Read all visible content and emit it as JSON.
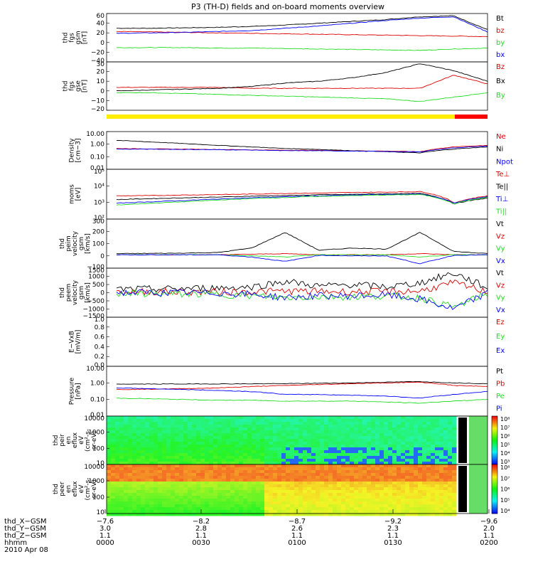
{
  "title": "P3 (TH-D) fields and on-board moments overview",
  "date_label": "2010 Apr 08",
  "colors": {
    "black": "#000000",
    "red": "#dd0000",
    "green": "#22dd22",
    "blue": "#0000ff",
    "bar_yellow": "#ffee00",
    "bar_red": "#ff0000"
  },
  "chart_data": [
    {
      "type": "line",
      "ylabel": [
        "thd",
        "fgs",
        "gsm",
        "[nT]"
      ],
      "yticks": [
        "60",
        "40",
        "20",
        "0",
        "−20",
        "−40"
      ],
      "ylim": [
        -40,
        65
      ],
      "series": [
        {
          "name": "Bt",
          "color": "black",
          "values": [
            33,
            33,
            34,
            35,
            37,
            40,
            44,
            48,
            52,
            58,
            60,
            30
          ]
        },
        {
          "name": "bz",
          "color": "red",
          "values": [
            26,
            25,
            24,
            23,
            22,
            21,
            20,
            19,
            18,
            17,
            16,
            15
          ]
        },
        {
          "name": "by",
          "color": "green",
          "values": [
            -9,
            -9,
            -9,
            -10,
            -10,
            -11,
            -12,
            -13,
            -14,
            -15,
            -12,
            -10
          ]
        },
        {
          "name": "bx",
          "color": "blue",
          "values": [
            22,
            23,
            24,
            26,
            28,
            33,
            38,
            44,
            50,
            55,
            58,
            25
          ]
        }
      ]
    },
    {
      "type": "line",
      "ylabel": [
        "thd",
        "fgs",
        "gse",
        "[nT]"
      ],
      "yticks": [
        "30",
        "20",
        "10",
        "0",
        "−10",
        "−20"
      ],
      "ylim": [
        -25,
        30
      ],
      "series": [
        {
          "name": "Bz",
          "color": "red",
          "values": [
            1,
            1,
            1,
            1,
            0,
            0,
            0,
            0,
            0,
            0,
            15,
            5
          ]
        },
        {
          "name": "Bx",
          "color": "black",
          "values": [
            -3,
            -2,
            -1,
            0,
            2,
            6,
            8,
            12,
            18,
            28,
            20,
            8
          ]
        },
        {
          "name": "By",
          "color": "green",
          "values": [
            -5,
            -5,
            -6,
            -7,
            -8,
            -9,
            -10,
            -11,
            -12,
            -15,
            -10,
            -5
          ]
        }
      ]
    },
    {
      "type": "line",
      "ylabel": [
        "Density",
        "[cm−3]"
      ],
      "yticks": [
        "10.00",
        "1.00",
        "0.10",
        "0.01"
      ],
      "log": true,
      "ylim": [
        0.01,
        10
      ],
      "series": [
        {
          "name": "Ne",
          "color": "red",
          "values": [
            0.45,
            0.42,
            0.4,
            0.38,
            0.35,
            0.33,
            0.32,
            0.3,
            0.28,
            0.25,
            0.6,
            0.8
          ]
        },
        {
          "name": "Ni",
          "color": "black",
          "values": [
            2.0,
            1.5,
            1.1,
            0.8,
            0.6,
            0.45,
            0.38,
            0.3,
            0.25,
            0.2,
            0.4,
            0.6
          ]
        },
        {
          "name": "Npot",
          "color": "blue",
          "values": [
            0.4,
            0.4,
            0.38,
            0.36,
            0.34,
            0.3,
            0.3,
            0.28,
            0.26,
            0.24,
            0.5,
            0.7
          ]
        }
      ]
    },
    {
      "type": "line",
      "ylabel": [
        "moms",
        "[eV]"
      ],
      "yticks": [
        "10⁵",
        "10⁴",
        "10³",
        "10²"
      ],
      "log": true,
      "ylim": [
        100,
        100000
      ],
      "series": [
        {
          "name": "Te⊥",
          "color": "red",
          "values": [
            2500,
            2600,
            2800,
            3000,
            3200,
            3500,
            3700,
            4000,
            4200,
            4500,
            900,
            2500
          ]
        },
        {
          "name": "Te||",
          "color": "black",
          "values": [
            1500,
            1700,
            1900,
            2100,
            2400,
            2600,
            2900,
            3100,
            3300,
            3500,
            800,
            1800
          ]
        },
        {
          "name": "Ti⊥",
          "color": "blue",
          "values": [
            900,
            1100,
            1300,
            1600,
            1900,
            2200,
            2500,
            2800,
            3000,
            3200,
            900,
            2200
          ]
        },
        {
          "name": "Ti||",
          "color": "green",
          "values": [
            700,
            900,
            1100,
            1400,
            1700,
            2000,
            2300,
            2600,
            2800,
            3000,
            800,
            2000
          ]
        }
      ]
    },
    {
      "type": "line",
      "ylabel": [
        "thd",
        "peim",
        "velocity",
        "gsm",
        "[km/s]"
      ],
      "yticks": [
        "300",
        "200",
        "100",
        "0",
        "−100"
      ],
      "ylim": [
        -120,
        320
      ],
      "series": [
        {
          "name": "Vt",
          "color": "black",
          "values": [
            10,
            12,
            15,
            20,
            60,
            200,
            40,
            60,
            50,
            200,
            30,
            10
          ]
        },
        {
          "name": "Vz",
          "color": "red",
          "values": [
            0,
            0,
            0,
            0,
            5,
            10,
            0,
            0,
            0,
            10,
            0,
            0
          ]
        },
        {
          "name": "Vy",
          "color": "green",
          "values": [
            0,
            0,
            0,
            0,
            -10,
            -20,
            0,
            0,
            0,
            -20,
            0,
            0
          ]
        },
        {
          "name": "Vx",
          "color": "blue",
          "values": [
            0,
            0,
            0,
            0,
            -20,
            -60,
            -5,
            -10,
            -10,
            -80,
            -5,
            0
          ]
        }
      ]
    },
    {
      "type": "line",
      "ylabel": [
        "thd",
        "peem",
        "velocity",
        "gsm",
        "[km/s]"
      ],
      "yticks": [
        "1500",
        "1000",
        "500",
        "0",
        "−500",
        "−1000",
        "−1500"
      ],
      "ylim": [
        -1500,
        1500
      ],
      "series": [
        {
          "name": "Vt",
          "color": "black",
          "values": [
            200,
            220,
            250,
            300,
            350,
            700,
            400,
            500,
            350,
            600,
            1200,
            300
          ]
        },
        {
          "name": "Vz",
          "color": "red",
          "values": [
            50,
            60,
            50,
            40,
            60,
            100,
            80,
            60,
            60,
            100,
            600,
            50
          ]
        },
        {
          "name": "Vy",
          "color": "green",
          "values": [
            -50,
            -60,
            -80,
            -100,
            -200,
            -300,
            -250,
            -250,
            -200,
            -300,
            -900,
            -50
          ]
        },
        {
          "name": "Vx",
          "color": "blue",
          "values": [
            0,
            0,
            0,
            -20,
            -100,
            -300,
            -200,
            -200,
            -150,
            -400,
            -1000,
            -20
          ]
        }
      ]
    },
    {
      "type": "line",
      "ylabel": [
        "E−VxB",
        "[mV/m]"
      ],
      "yticks": [
        "1.0",
        "0.8",
        "0.6",
        "0.4",
        "0.2",
        "0.0"
      ],
      "ylim": [
        0,
        1
      ],
      "series": [
        {
          "name": "Ez",
          "color": "red",
          "values": []
        },
        {
          "name": "Ey",
          "color": "green",
          "values": []
        },
        {
          "name": "Ex",
          "color": "blue",
          "values": []
        }
      ]
    },
    {
      "type": "line",
      "ylabel": [
        "Pressure",
        "[nPa]"
      ],
      "yticks": [
        "10.00",
        "1.00",
        "0.10",
        "0.01"
      ],
      "log": true,
      "ylim": [
        0.01,
        10
      ],
      "series": [
        {
          "name": "Pt",
          "color": "black",
          "values": [
            0.85,
            0.85,
            0.86,
            0.87,
            0.88,
            0.9,
            0.95,
            1.0,
            1.1,
            1.2,
            1.0,
            0.9
          ]
        },
        {
          "name": "Pb",
          "color": "red",
          "values": [
            0.4,
            0.42,
            0.45,
            0.5,
            0.6,
            0.7,
            0.8,
            0.9,
            1.0,
            1.1,
            0.7,
            0.6
          ]
        },
        {
          "name": "Pe",
          "color": "green",
          "values": [
            0.12,
            0.11,
            0.1,
            0.09,
            0.09,
            0.08,
            0.08,
            0.08,
            0.07,
            0.06,
            0.08,
            0.1
          ]
        },
        {
          "name": "Pi",
          "color": "blue",
          "values": [
            0.5,
            0.45,
            0.4,
            0.35,
            0.3,
            0.2,
            0.2,
            0.18,
            0.16,
            0.12,
            0.2,
            0.3
          ]
        }
      ]
    },
    {
      "type": "heatmap",
      "ylabel": [
        "thd",
        "peir",
        "en",
        "eflux",
        "eV",
        "(cm²-s-",
        "sr-eV)"
      ],
      "yticks": [
        "10000",
        "1000",
        "100",
        "10"
      ],
      "colorbar_ticks": [
        "10⁸",
        "10⁷",
        "10⁶",
        "10⁵",
        "10⁴",
        "10³"
      ]
    },
    {
      "type": "heatmap",
      "ylabel": [
        "thd",
        "peer",
        "en",
        "eflux",
        "eV",
        "(cm²-s-",
        "sr-eV)"
      ],
      "yticks": [
        "10000",
        "1000",
        "100",
        "10"
      ],
      "colorbar_ticks": [
        "10⁸",
        "10⁷",
        "10⁶",
        "10⁵",
        "10⁴"
      ]
    }
  ],
  "x_axis": {
    "rows": [
      {
        "label": "thd_X−GSM",
        "values": [
          "−7.6",
          "−8.2",
          "−8.7",
          "−9.2",
          "−9.6"
        ]
      },
      {
        "label": "thd_Y−GSM",
        "values": [
          "3.0",
          "2.8",
          "2.6",
          "2.3",
          "2.0"
        ]
      },
      {
        "label": "thd_Z−GSM",
        "values": [
          "1.1",
          "1.1",
          "1.1",
          "1.1",
          "1.1"
        ]
      },
      {
        "label": "hhmm",
        "values": [
          "0000",
          "0030",
          "0100",
          "0130",
          "0200"
        ]
      }
    ]
  }
}
